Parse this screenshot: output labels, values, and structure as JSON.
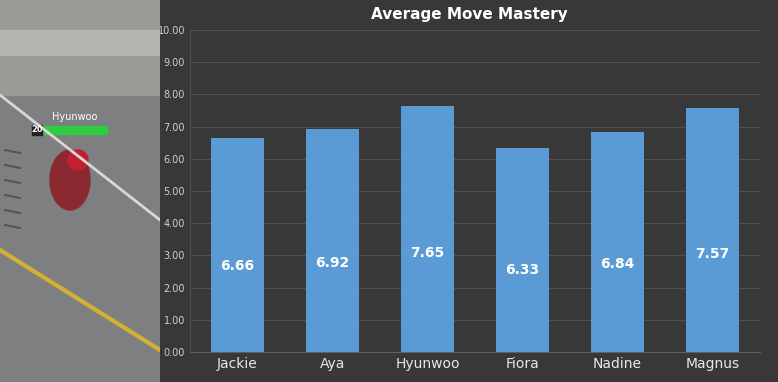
{
  "chart_data": {
    "type": "bar",
    "title": "Average Move Mastery",
    "categories": [
      "Jackie",
      "Aya",
      "Hyunwoo",
      "Fiora",
      "Nadine",
      "Magnus"
    ],
    "values": [
      6.66,
      6.92,
      7.65,
      6.33,
      6.84,
      7.57
    ],
    "color": "#5b9bd5",
    "ylim": [
      0,
      10
    ],
    "yticks": [
      {
        "value": 0,
        "label": "0.00"
      },
      {
        "value": 1,
        "label": "1.00"
      },
      {
        "value": 2,
        "label": "2.00"
      },
      {
        "value": 3,
        "label": "3.00"
      },
      {
        "value": 4,
        "label": "4.00"
      },
      {
        "value": 5,
        "label": "5.00"
      },
      {
        "value": 6,
        "label": "6.00"
      },
      {
        "value": 7,
        "label": "7.00"
      },
      {
        "value": 8,
        "label": "8.00"
      },
      {
        "value": 9,
        "label": "9.00"
      },
      {
        "value": 10,
        "label": "10.00"
      }
    ],
    "grid": true,
    "data_labels": true,
    "annotations": [
      "Hyunwoo",
      "20"
    ]
  }
}
